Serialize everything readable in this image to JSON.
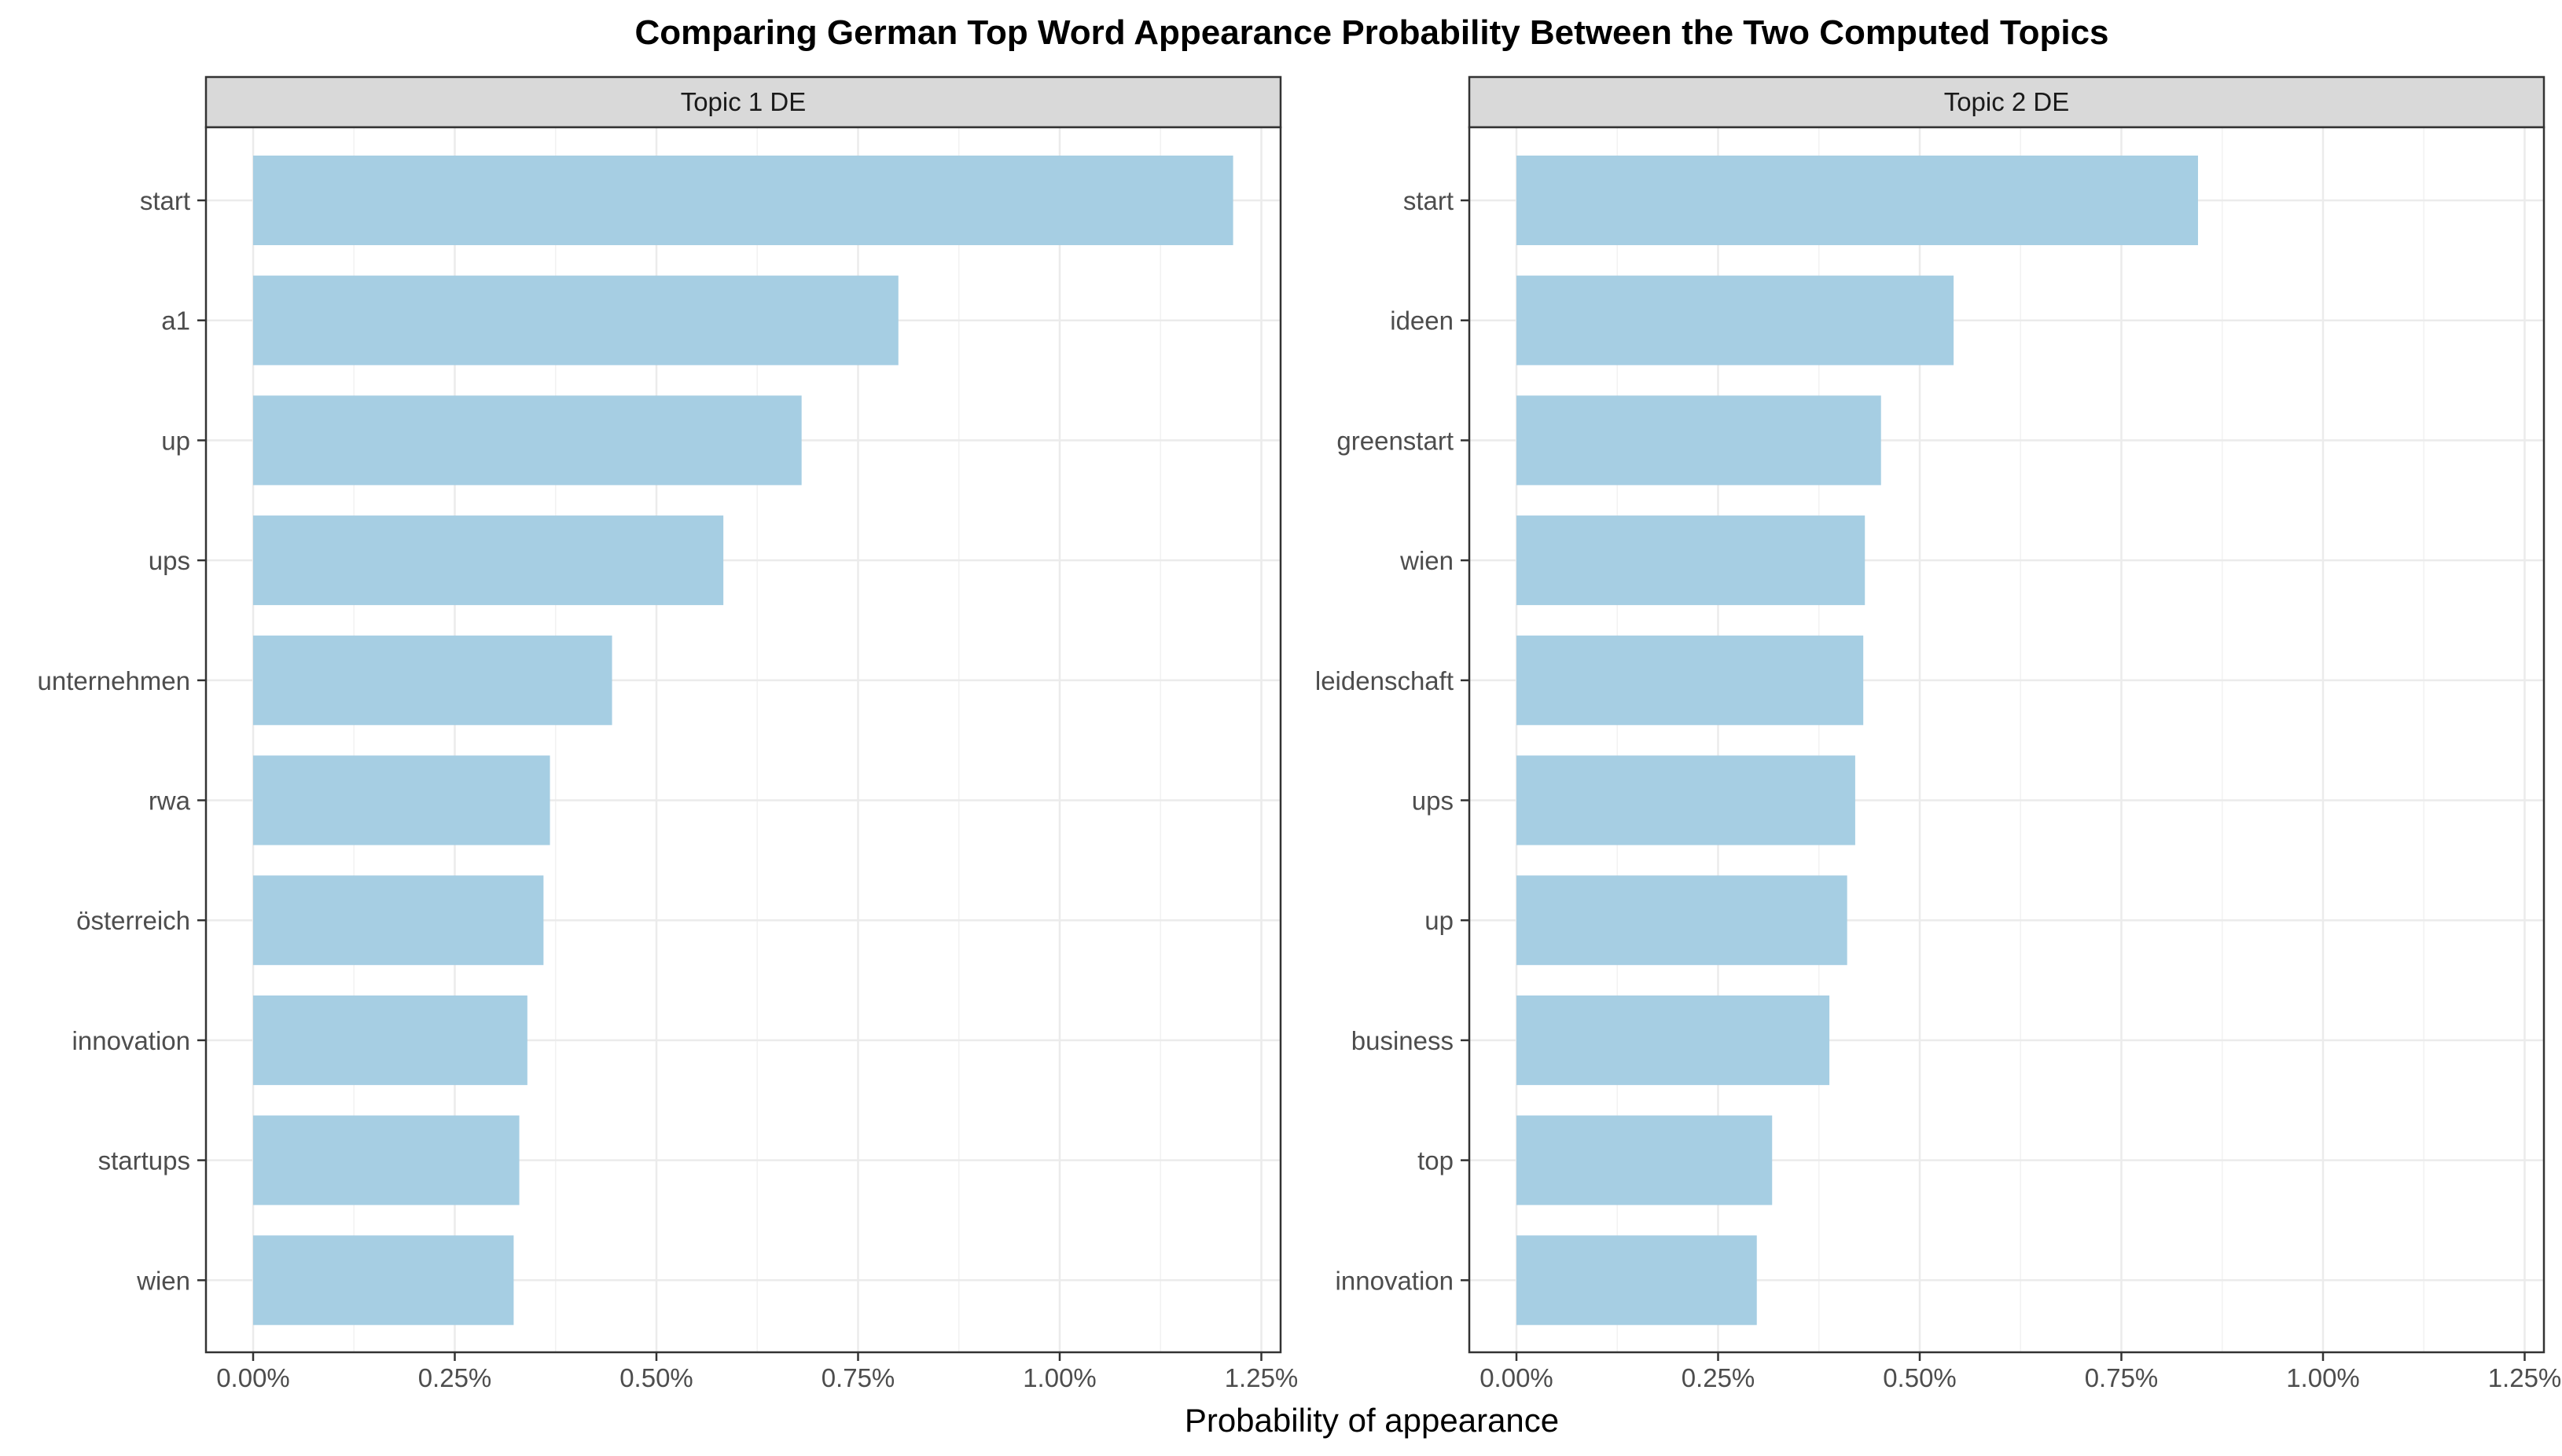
{
  "chart_data": {
    "type": "bar",
    "orientation": "horizontal",
    "title": "Comparing German Top Word Appearance Probability Between the Two Computed Topics",
    "xlabel": "Probability of appearance",
    "ylabel": "",
    "xlim": [
      0,
      1.25
    ],
    "xticks": [
      0,
      0.25,
      0.5,
      0.75,
      1.0,
      1.25
    ],
    "xtick_labels": [
      "0.00%",
      "0.25%",
      "0.50%",
      "0.75%",
      "1.00%",
      "1.25%"
    ],
    "grid": true,
    "bar_color": "#a6cee3",
    "panels": [
      {
        "label": "Topic 1 DE",
        "categories": [
          "start",
          "a1",
          "up",
          "ups",
          "unternehmen",
          "rwa",
          "österreich",
          "innovation",
          "startups",
          "wien"
        ],
        "values": [
          1.215,
          0.8,
          0.68,
          0.583,
          0.445,
          0.368,
          0.36,
          0.34,
          0.33,
          0.323
        ]
      },
      {
        "label": "Topic 2 DE",
        "categories": [
          "start",
          "ideen",
          "greenstart",
          "wien",
          "leidenschaft",
          "ups",
          "up",
          "business",
          "top",
          "innovation"
        ],
        "values": [
          0.845,
          0.542,
          0.452,
          0.432,
          0.43,
          0.42,
          0.41,
          0.388,
          0.317,
          0.298
        ]
      }
    ]
  }
}
